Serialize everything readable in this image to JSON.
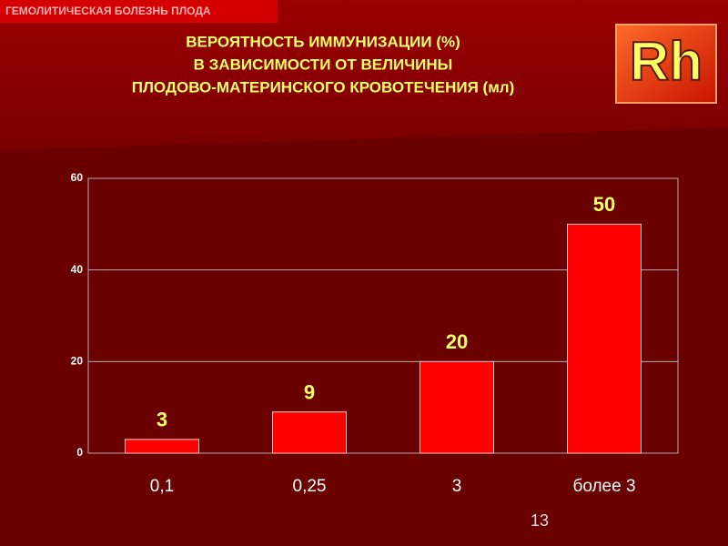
{
  "slide": {
    "header": "ГЕМОЛИТИЧЕСКАЯ БОЛЕЗНЬ ПЛОДА",
    "logo": "Rh",
    "page_number": "13"
  },
  "chart_data": {
    "type": "bar",
    "title": [
      "ВЕРОЯТНОСТЬ ИММУНИЗАЦИИ (%)",
      "В ЗАВИСИМОСТИ ОТ ВЕЛИЧИНЫ",
      "ПЛОДОВО-МАТЕРИНСКОГО КРОВОТЕЧЕНИЯ (мл)"
    ],
    "categories": [
      "0,1",
      "0,25",
      "3",
      "более 3"
    ],
    "values": [
      3,
      9,
      20,
      50
    ],
    "color": "#ff0000",
    "ylim": [
      0,
      60
    ],
    "yticks": [
      0,
      20,
      40,
      60
    ],
    "grid": true
  }
}
